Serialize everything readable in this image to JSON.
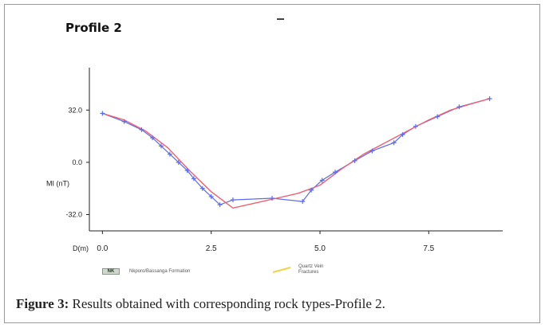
{
  "chart_data": {
    "type": "line",
    "title": "Profile 2",
    "ylabel": "MI (nT)",
    "xlabel": "D(m)",
    "xlim": [
      -0.3,
      9.2
    ],
    "ylim": [
      -42,
      58
    ],
    "x_ticks": [
      0,
      2.5,
      5,
      7.5
    ],
    "x_tick_labels": [
      "0.0",
      "2.5",
      "5.0",
      "7.5"
    ],
    "y_ticks": [
      32,
      0,
      -32
    ],
    "y_tick_labels": [
      "32.0",
      "0.0",
      "-32.0"
    ],
    "grid": false,
    "series": [
      {
        "color": "#5b6cf0",
        "markers": true,
        "x": [
          0,
          0.5,
          0.9,
          1.15,
          1.35,
          1.55,
          1.75,
          1.95,
          2.1,
          2.3,
          2.5,
          2.7,
          3.0,
          3.9,
          4.6,
          4.8,
          5.05,
          5.35,
          5.8,
          6.2,
          6.7,
          6.9,
          7.2,
          7.7,
          8.2,
          8.9
        ],
        "y": [
          30,
          25,
          20,
          15,
          10,
          5,
          0,
          -5,
          -10,
          -16,
          -21,
          -26,
          -23,
          -22,
          -24,
          -17,
          -11,
          -6,
          1,
          7,
          12,
          17,
          22,
          28,
          34,
          39
        ]
      },
      {
        "color": "#f06070",
        "markers": false,
        "x": [
          0,
          0.5,
          1.0,
          1.5,
          2.0,
          2.5,
          3.0,
          3.5,
          4.0,
          4.5,
          5.0,
          5.5,
          6.0,
          6.5,
          7.0,
          7.5,
          8.0,
          8.5,
          8.9
        ],
        "y": [
          30,
          26,
          19,
          9,
          -5,
          -18,
          -28,
          -25,
          -22,
          -19,
          -14,
          -4,
          5,
          12,
          19,
          26,
          32,
          36,
          39
        ]
      }
    ]
  },
  "legend": {
    "nk_code": "NK",
    "nk_label": "Nkporo/Bassanga Formation",
    "qv_label": "Quartz Vein Fractures",
    "qv_color": "#f2d24a"
  },
  "caption": {
    "prefix": "Figure 3:",
    "text": " Results obtained with corresponding rock types-Profile 2."
  }
}
